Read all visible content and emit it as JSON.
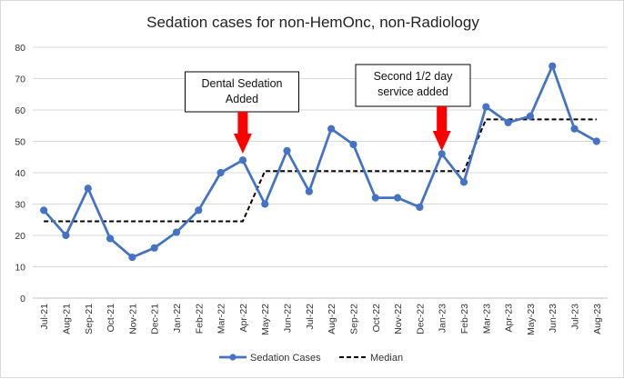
{
  "chart_data": {
    "type": "line",
    "title": "Sedation cases for non-HemOnc, non-Radiology",
    "xlabel": "",
    "ylabel": "",
    "ylim": [
      0,
      80
    ],
    "yticks": [
      0,
      10,
      20,
      30,
      40,
      50,
      60,
      70,
      80
    ],
    "grid": true,
    "legend_position": "bottom",
    "categories": [
      "Jul-21",
      "Aug-21",
      "Sep-21",
      "Oct-21",
      "Nov-21",
      "Dec-21",
      "Jan-22",
      "Feb-22",
      "Mar-22",
      "Apr-22",
      "May-22",
      "Jun-22",
      "Jul-22",
      "Aug-22",
      "Sep-22",
      "Oct-22",
      "Nov-22",
      "Dec-22",
      "Jan-23",
      "Feb-23",
      "Mar-23",
      "Apr-23",
      "May-23",
      "Jun-23",
      "Jul-23",
      "Aug-23"
    ],
    "series": [
      {
        "name": "Sedation Cases",
        "color": "#4472c4",
        "style": "solid-marker",
        "values": [
          28,
          20,
          35,
          19,
          13,
          16,
          21,
          28,
          40,
          44,
          30,
          47,
          34,
          54,
          49,
          32,
          32,
          29,
          46,
          37,
          61,
          56,
          58,
          74,
          54,
          50
        ]
      },
      {
        "name": "Median",
        "color": "#000000",
        "style": "dashed",
        "values": [
          24.5,
          24.5,
          24.5,
          24.5,
          24.5,
          24.5,
          24.5,
          24.5,
          24.5,
          24.5,
          40.5,
          40.5,
          40.5,
          40.5,
          40.5,
          40.5,
          40.5,
          40.5,
          40.5,
          40.5,
          57,
          57,
          57,
          57,
          57,
          57
        ]
      }
    ],
    "annotations": [
      {
        "lines": [
          "Dental Sedation",
          "Added"
        ],
        "category": "Apr-22",
        "arrow_color": "#ff0000"
      },
      {
        "lines": [
          "Second 1/2 day",
          "service added"
        ],
        "category": "Jan-23",
        "arrow_color": "#ff0000"
      }
    ]
  }
}
